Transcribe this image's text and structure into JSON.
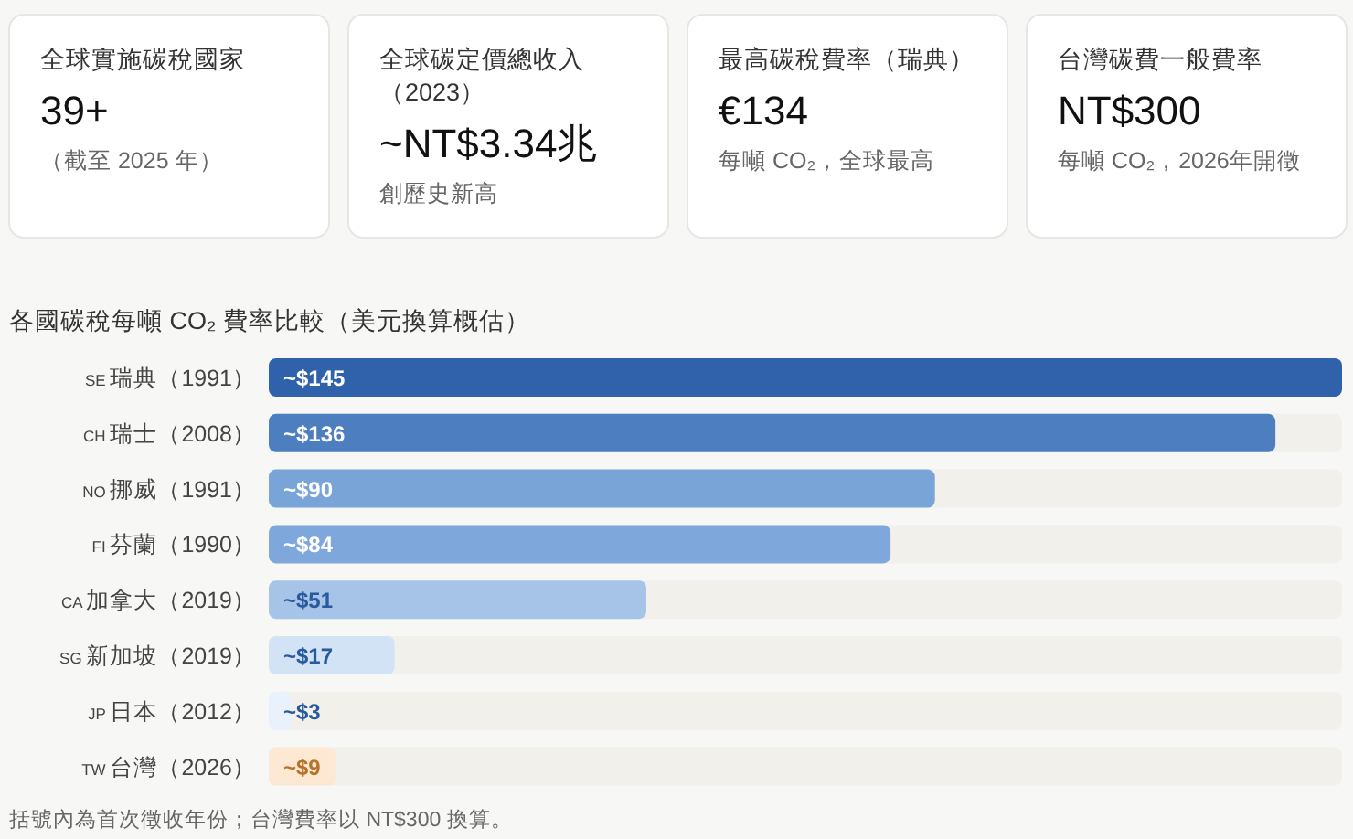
{
  "chart_data": [
    {
      "type": "other",
      "title": "全球實施碳稅國家",
      "annotations": [
        "39+",
        "（截至 2025 年）"
      ]
    },
    {
      "type": "other",
      "title": "全球碳定價總收入（2023）",
      "annotations": [
        "~NT$3.34兆",
        "創歷史新高"
      ]
    },
    {
      "type": "other",
      "title": "最高碳稅費率（瑞典）",
      "annotations": [
        "€134",
        "每噸 CO₂，全球最高"
      ]
    },
    {
      "type": "other",
      "title": "台灣碳費一般費率",
      "annotations": [
        "NT$300",
        "每噸 CO₂，2026年開徵"
      ]
    },
    {
      "type": "bar",
      "orientation": "horizontal",
      "title": "各國碳稅每噸 CO₂ 費率比較（美元換算概估）",
      "categories": [
        "SE 瑞典（1991）",
        "CH 瑞士（2008）",
        "NO 挪威（1991）",
        "FI 芬蘭（1990）",
        "CA 加拿大（2019）",
        "SG 新加坡（2019）",
        "JP 日本（2012）",
        "TW 台灣（2026）"
      ],
      "values": [
        145,
        136,
        90,
        84,
        51,
        17,
        3,
        9
      ],
      "value_labels": [
        "~$145",
        "~$136",
        "~$90",
        "~$84",
        "~$51",
        "~$17",
        "~$3",
        "~$9"
      ],
      "colors": [
        "#2f62ab",
        "#4d7fc0",
        "#78a4d8",
        "#7ea7db",
        "#a6c3e8",
        "#d2e3f6",
        "#e8f1fc",
        "#fde9d3"
      ],
      "annotations": [
        "括號內為首次徵收年份；台灣費率以 NT$300 換算。"
      ]
    }
  ]
}
